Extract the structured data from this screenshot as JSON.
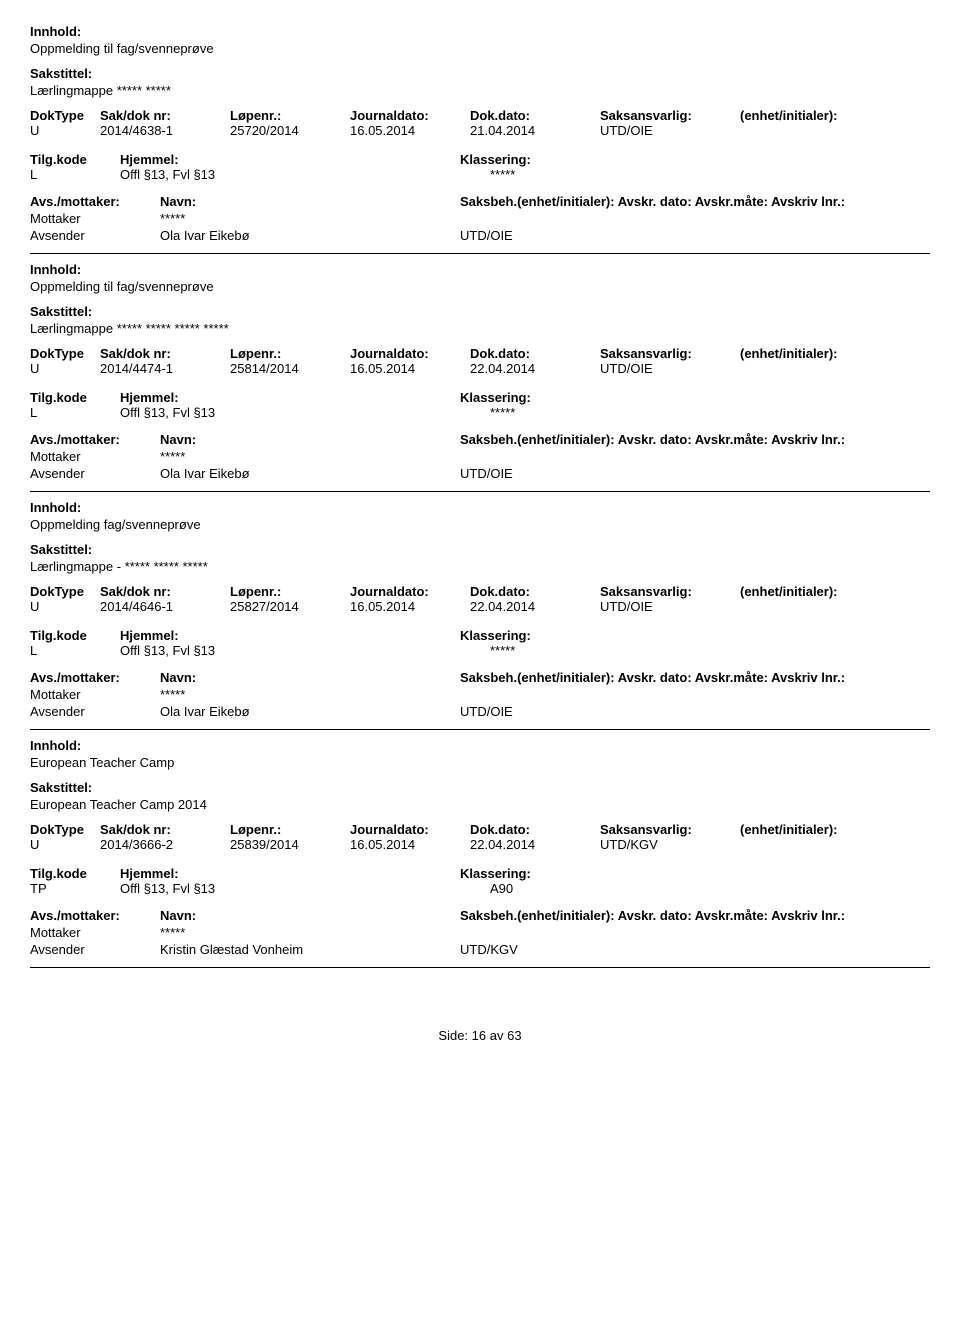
{
  "labels": {
    "innhold": "Innhold:",
    "sakstittel": "Sakstittel:",
    "doktype": "DokType",
    "sakdoknr": "Sak/dok nr:",
    "lopenr": "Løpenr.:",
    "journaldato": "Journaldato:",
    "dokdato": "Dok.dato:",
    "saksansvarlig": "Saksansvarlig:",
    "enhet": "(enhet/initialer):",
    "tilgkode": "Tilg.kode",
    "hjemmel": "Hjemmel:",
    "klassering": "Klassering:",
    "avsmottaker": "Avs./mottaker:",
    "navn": "Navn:",
    "saksbeh_line": "Saksbeh.(enhet/initialer): Avskr. dato:  Avskr.måte:  Avskriv lnr.:",
    "side": "Side:"
  },
  "records": [
    {
      "innhold": "Oppmelding til fag/svenneprøve",
      "sakstittel": "Lærlingmappe ***** *****",
      "doktype": "U",
      "sakdoknr": "2014/4638-1",
      "lopenr": "25720/2014",
      "journaldato": "16.05.2014",
      "dokdato": "21.04.2014",
      "saksansvarlig": "UTD/OIE",
      "enhet": "",
      "tilgkode": "L",
      "hjemmel": "Offl §13, Fvl §13",
      "klassering": "*****",
      "parties": [
        {
          "role": "Mottaker",
          "name": "*****",
          "unit": ""
        },
        {
          "role": "Avsender",
          "name": "Ola Ivar Eikebø",
          "unit": "UTD/OIE"
        }
      ]
    },
    {
      "innhold": "Oppmelding til fag/svenneprøve",
      "sakstittel": "Lærlingmappe ***** ***** ***** *****",
      "doktype": "U",
      "sakdoknr": "2014/4474-1",
      "lopenr": "25814/2014",
      "journaldato": "16.05.2014",
      "dokdato": "22.04.2014",
      "saksansvarlig": "UTD/OIE",
      "enhet": "",
      "tilgkode": "L",
      "hjemmel": "Offl §13, Fvl §13",
      "klassering": "*****",
      "parties": [
        {
          "role": "Mottaker",
          "name": "*****",
          "unit": ""
        },
        {
          "role": "Avsender",
          "name": "Ola Ivar Eikebø",
          "unit": "UTD/OIE"
        }
      ]
    },
    {
      "innhold": "Oppmelding fag/svenneprøve",
      "sakstittel": "Lærlingmappe - ***** ***** *****",
      "doktype": "U",
      "sakdoknr": "2014/4646-1",
      "lopenr": "25827/2014",
      "journaldato": "16.05.2014",
      "dokdato": "22.04.2014",
      "saksansvarlig": "UTD/OIE",
      "enhet": "",
      "tilgkode": "L",
      "hjemmel": "Offl §13, Fvl §13",
      "klassering": "*****",
      "parties": [
        {
          "role": "Mottaker",
          "name": "*****",
          "unit": ""
        },
        {
          "role": "Avsender",
          "name": "Ola Ivar Eikebø",
          "unit": "UTD/OIE"
        }
      ]
    },
    {
      "innhold": "European Teacher Camp",
      "sakstittel": "European Teacher Camp 2014",
      "doktype": "U",
      "sakdoknr": "2014/3666-2",
      "lopenr": "25839/2014",
      "journaldato": "16.05.2014",
      "dokdato": "22.04.2014",
      "saksansvarlig": "UTD/KGV",
      "enhet": "",
      "tilgkode": "TP",
      "hjemmel": "Offl §13, Fvl §13",
      "klassering": "A90",
      "parties": [
        {
          "role": "Mottaker",
          "name": "*****",
          "unit": ""
        },
        {
          "role": "Avsender",
          "name": "Kristin Glæstad Vonheim",
          "unit": "UTD/KGV"
        }
      ]
    }
  ],
  "footer": {
    "page": "16",
    "sep": "av",
    "total": "63"
  }
}
